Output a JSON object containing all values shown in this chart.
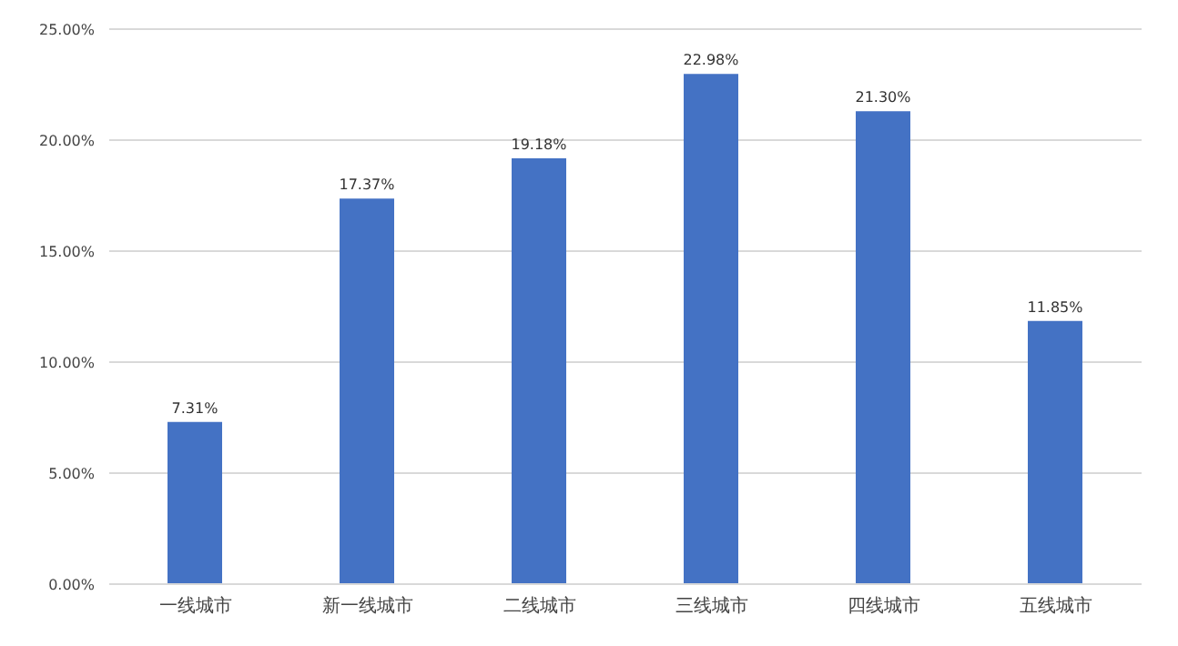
{
  "chart_data": {
    "type": "bar",
    "categories": [
      "一线城市",
      "新一线城市",
      "二线城市",
      "三线城市",
      "四线城市",
      "五线城市"
    ],
    "values": [
      7.31,
      17.37,
      19.18,
      22.98,
      21.3,
      11.85
    ],
    "value_labels": [
      "7.31%",
      "17.37%",
      "19.18%",
      "22.98%",
      "21.30%",
      "11.85%"
    ],
    "color": "#4472c4",
    "ylim": [
      0,
      25
    ],
    "yticks": [
      {
        "value": 0,
        "label": "0.00%"
      },
      {
        "value": 5,
        "label": "5.00%"
      },
      {
        "value": 10,
        "label": "10.00%"
      },
      {
        "value": 15,
        "label": "15.00%"
      },
      {
        "value": 20,
        "label": "20.00%"
      },
      {
        "value": 25,
        "label": "25.00%"
      }
    ],
    "grid": "y"
  }
}
